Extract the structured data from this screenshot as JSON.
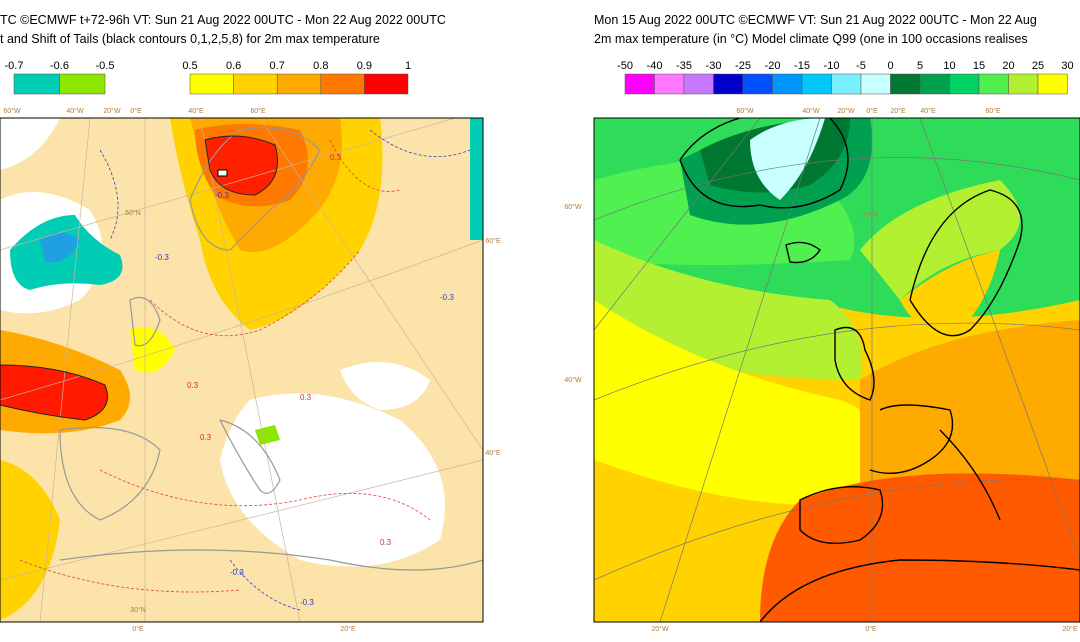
{
  "panels": [
    {
      "title_lines": [
        "TC ©ECMWF t+72-96h  VT: Sun 21 Aug 2022 00UTC - Mon 22 Aug 2022 00UTC",
        "t and Shift of Tails (black contours 0,1,2,5,8) for 2m max temperature"
      ],
      "legend_groups": [
        {
          "labels": [
            -0.7,
            -0.6,
            -0.5
          ],
          "colors": [
            "#00cdb4",
            "#8ce600"
          ]
        },
        {
          "labels": [
            0.5,
            0.6,
            0.7,
            0.8,
            0.9,
            1
          ],
          "colors": [
            "#ffff00",
            "#ffd200",
            "#ffaa00",
            "#ff7800",
            "#ff0000"
          ]
        }
      ],
      "graticule_labels": [
        "60°W",
        "40°W",
        "20°W",
        "0°E",
        "40°E",
        "60°E",
        "60°E",
        "40°E",
        "50°N",
        "30°N",
        "0°E",
        "20°E"
      ],
      "contour_labels": [
        "0.3",
        "-0.3",
        "0.3",
        "0.3",
        "-0.3",
        "0.3",
        "-0.3",
        "-0.3",
        "-0.3",
        "0.3"
      ]
    },
    {
      "title_lines": [
        "Mon 15 Aug 2022 00UTC ©ECMWF VT: Sun 21 Aug 2022 00UTC - Mon 22 Aug",
        "2m max temperature (in °C)  Model climate Q99 (one in 100 occasions realises"
      ],
      "legend_groups": [
        {
          "labels": [
            -50,
            -40,
            -35,
            -30,
            -25,
            -20,
            -15,
            -10,
            -5,
            0,
            5,
            10,
            15,
            20,
            25,
            30
          ],
          "colors": [
            "#ff00ff",
            "#ff78ff",
            "#c878ff",
            "#0000c8",
            "#0050ff",
            "#0096ff",
            "#00c8ff",
            "#78f0ff",
            "#c8ffff",
            "#007832",
            "#00a050",
            "#00d264",
            "#50f050",
            "#b4f032",
            "#ffff00"
          ]
        }
      ],
      "graticule_labels": [
        "60°W",
        "40°W",
        "20°W",
        "0°E",
        "20°E",
        "40°E",
        "60°E",
        "60°W",
        "40°W",
        "70°N",
        "20°W",
        "0°E",
        "20°E"
      ]
    }
  ]
}
